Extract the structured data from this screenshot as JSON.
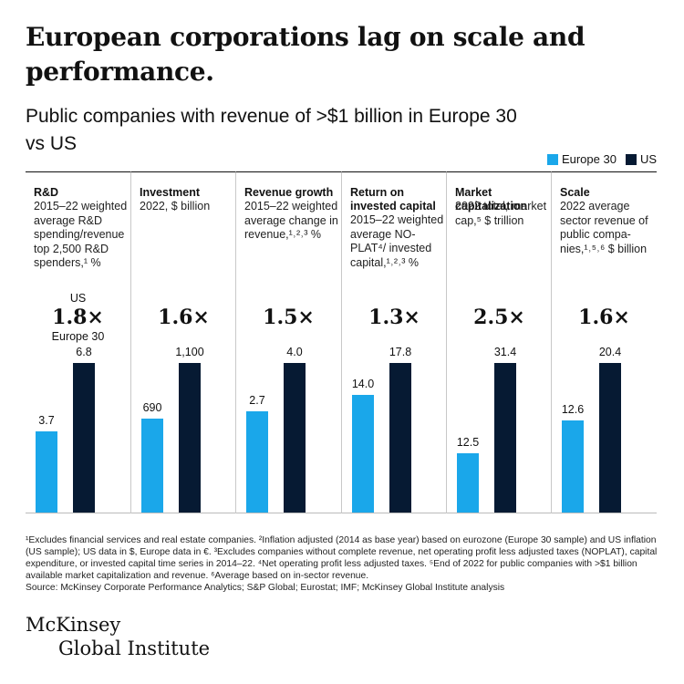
{
  "headline": "European corporations lag on scale and performance.",
  "subtitle": "Public companies with revenue of >$1 billion in Europe 30 vs US",
  "colors": {
    "europe": "#1aa7ea",
    "us": "#061a33"
  },
  "legend": {
    "europe": "Europe 30",
    "us": "US"
  },
  "ratio_labels": {
    "us": "US",
    "europe": "Europe 30"
  },
  "chart_data": {
    "type": "bar",
    "series": [
      {
        "name": "Europe 30",
        "values": [
          3.7,
          690,
          2.7,
          14.0,
          12.5,
          12.6
        ],
        "labels": [
          "3.7",
          "690",
          "2.7",
          "14.0",
          "12.5",
          "12.6"
        ]
      },
      {
        "name": "US",
        "values": [
          6.8,
          1100,
          4.0,
          17.8,
          31.4,
          20.4
        ],
        "labels": [
          "6.8",
          "1,100",
          "4.0",
          "17.8",
          "31.4",
          "20.4"
        ]
      }
    ],
    "panels": [
      {
        "title": "R&D",
        "desc": "2015–22 weighted average R&D spending/revenue top 2,500 R&D spenders,¹ %",
        "ratio": "1.8×"
      },
      {
        "title": "Investment",
        "desc": "2022, $ billion",
        "ratio": "1.6×"
      },
      {
        "title": "Revenue growth",
        "desc": "2015–22 weighted average change in revenue,¹˒²˒³ %",
        "ratio": "1.5×"
      },
      {
        "title": "Return on invested capital",
        "desc": "2015–22 weighted average NO-PLAT⁴/ invested capital,¹˒²˒³ %",
        "ratio": "1.3×"
      },
      {
        "title": "Market capitalization",
        "desc": "2022 total, market cap,⁵ $ trillion",
        "ratio": "2.5×"
      },
      {
        "title": "Scale",
        "desc": "2022 average sector revenue of public compa-nies,¹˒⁵˒⁶ $ billion",
        "ratio": "1.6×"
      }
    ]
  },
  "footnotes": "¹Excludes financial services and real estate companies. ²Inflation adjusted (2014 as base year) based on eurozone (Europe 30 sample) and US inflation (US sample); US data in $, Europe data in €. ³Excludes companies without complete revenue, net operating profit less adjusted taxes (NOPLAT), capital expenditure, or invested capital time series in 2014–22. ⁴Net operating profit less adjusted taxes. ⁵End of 2022 for public companies with >$1 billion available market capitalization and revenue. ⁶Average based on in-sector revenue.",
  "source": "Source: McKinsey Corporate Performance Analytics; S&P Global; Eurostat; IMF; McKinsey Global Institute analysis",
  "logo": {
    "line1": "McKinsey",
    "line2": "Global Institute"
  }
}
